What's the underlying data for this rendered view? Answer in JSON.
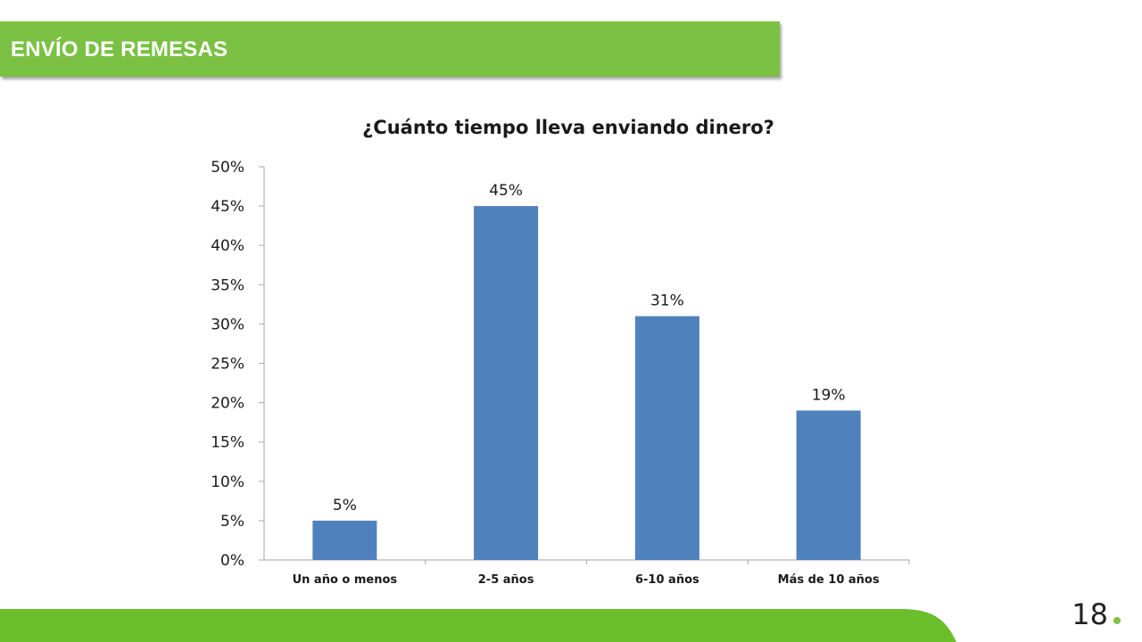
{
  "header": {
    "title": "ENVÍO DE REMESAS"
  },
  "footer": {
    "page_number": "18"
  },
  "colors": {
    "accent_green": "#7ac143",
    "bar_blue": "#4f81bd"
  },
  "chart_data": {
    "type": "bar",
    "title": "¿Cuánto tiempo lleva enviando dinero?",
    "xlabel": "",
    "ylabel": "",
    "categories": [
      "Un año o menos",
      "2-5 años",
      "6-10 años",
      "Más de 10 años"
    ],
    "values": [
      5,
      45,
      31,
      19
    ],
    "data_labels": [
      "5%",
      "45%",
      "31%",
      "19%"
    ],
    "ylim": [
      0,
      50
    ],
    "y_ticks": [
      0,
      5,
      10,
      15,
      20,
      25,
      30,
      35,
      40,
      45,
      50
    ],
    "y_tick_labels": [
      "0%",
      "5%",
      "10%",
      "15%",
      "20%",
      "25%",
      "30%",
      "35%",
      "40%",
      "45%",
      "50%"
    ],
    "grid": false,
    "legend": "none"
  }
}
